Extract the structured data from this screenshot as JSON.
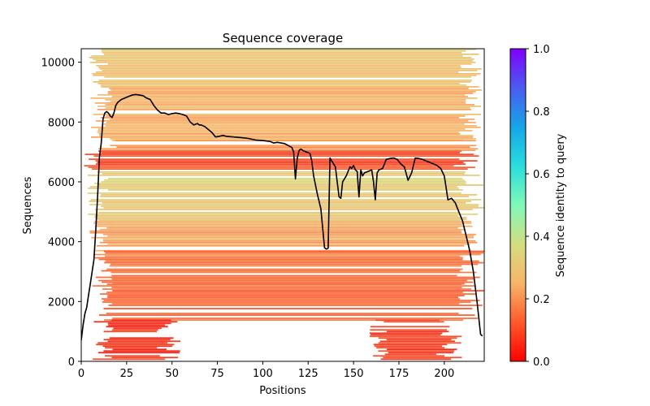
{
  "chart_data": {
    "type": "heatmap",
    "title": "Sequence coverage",
    "xlabel": "Positions",
    "ylabel": "Sequences",
    "xlim": [
      0,
      222
    ],
    "ylim": [
      0,
      10450
    ],
    "xticks": [
      0,
      25,
      50,
      75,
      100,
      125,
      150,
      175,
      200
    ],
    "yticks": [
      0,
      2000,
      4000,
      6000,
      8000,
      10000
    ],
    "xtick_labels": [
      "0",
      "25",
      "50",
      "75",
      "100",
      "125",
      "150",
      "175",
      "200"
    ],
    "ytick_labels": [
      "0",
      "2000",
      "4000",
      "6000",
      "8000",
      "10000"
    ],
    "grid": false,
    "colorbar": {
      "label": "Sequence identity to query",
      "colormap": "rainbow_r",
      "range": [
        0.0,
        1.0
      ],
      "ticks": [
        0.0,
        0.2,
        0.4,
        0.6,
        0.8,
        1.0
      ],
      "tick_labels": [
        "0.0",
        "0.2",
        "0.4",
        "0.6",
        "0.8",
        "1.0"
      ],
      "stops": [
        "#ff0000",
        "#ff5a2c",
        "#f7b56a",
        "#d4dd80",
        "#7ff9b8",
        "#2adddd",
        "#16a5e8",
        "#4a5cf0",
        "#8000ff"
      ]
    },
    "row_bands": [
      {
        "y_range": [
          9200,
          10450
        ],
        "identity": 0.3,
        "x_start": 5,
        "x_end": 222
      },
      {
        "y_range": [
          7400,
          9200
        ],
        "identity": 0.25,
        "x_start": 7,
        "x_end": 222
      },
      {
        "y_range": [
          7050,
          7400
        ],
        "identity": 0.2,
        "x_start": 10,
        "x_end": 222
      },
      {
        "y_range": [
          6400,
          7050
        ],
        "identity": 0.1,
        "x_start": 3,
        "x_end": 220
      },
      {
        "y_range": [
          4700,
          6350
        ],
        "identity": 0.32,
        "x_start": 5,
        "x_end": 222
      },
      {
        "y_range": [
          3700,
          4700
        ],
        "identity": 0.24,
        "x_start": 5,
        "x_end": 222
      },
      {
        "y_range": [
          2600,
          3700
        ],
        "identity": 0.16,
        "x_start": 8,
        "x_end": 222
      },
      {
        "y_range": [
          1400,
          2600
        ],
        "identity": 0.13,
        "x_start": 8,
        "x_end": 222
      },
      {
        "y_range": [
          0,
          1400
        ],
        "identity": 0.07,
        "x_start": 8,
        "x_end": 55
      },
      {
        "y_range": [
          0,
          1400
        ],
        "identity": 0.08,
        "x_start": 160,
        "x_end": 210
      }
    ],
    "series": [
      {
        "name": "coverage",
        "color": "#000000",
        "x": [
          0,
          1,
          2,
          3,
          4,
          5,
          6,
          7,
          8,
          9,
          10,
          11,
          12,
          13,
          14,
          15,
          16,
          17,
          18,
          19,
          20,
          22,
          24,
          26,
          28,
          30,
          32,
          34,
          36,
          38,
          40,
          42,
          44,
          46,
          48,
          50,
          52,
          54,
          56,
          58,
          60,
          62,
          64,
          65,
          66,
          68,
          70,
          72,
          74,
          76,
          78,
          80,
          84,
          88,
          92,
          96,
          100,
          104,
          106,
          108,
          112,
          116,
          117,
          118,
          119,
          120,
          121,
          122,
          124,
          126,
          127,
          128,
          130,
          132,
          134,
          135,
          136,
          137,
          138,
          140,
          141,
          142,
          143,
          144,
          146,
          148,
          149,
          150,
          151,
          152,
          153,
          154,
          155,
          156,
          158,
          160,
          161,
          162,
          163,
          164,
          166,
          168,
          170,
          172,
          174,
          176,
          178,
          180,
          182,
          184,
          186,
          188,
          190,
          192,
          194,
          196,
          198,
          200,
          201,
          202,
          204,
          206,
          208,
          210,
          212,
          214,
          216,
          218,
          220,
          221
        ],
        "y": [
          700,
          1200,
          1600,
          1800,
          2200,
          2600,
          3000,
          3400,
          4400,
          5500,
          6800,
          7300,
          8100,
          8300,
          8350,
          8300,
          8200,
          8150,
          8300,
          8550,
          8650,
          8750,
          8800,
          8850,
          8900,
          8920,
          8900,
          8880,
          8800,
          8750,
          8550,
          8400,
          8300,
          8300,
          8250,
          8280,
          8300,
          8280,
          8250,
          8200,
          8000,
          7900,
          7950,
          7900,
          7900,
          7850,
          7750,
          7650,
          7500,
          7520,
          7550,
          7520,
          7500,
          7480,
          7450,
          7400,
          7380,
          7350,
          7300,
          7320,
          7280,
          7150,
          7000,
          6100,
          6800,
          7050,
          7100,
          7050,
          7000,
          6950,
          6700,
          6200,
          5600,
          5100,
          3800,
          3750,
          3780,
          6800,
          6700,
          6500,
          6000,
          5500,
          5450,
          6000,
          6200,
          6500,
          6450,
          6550,
          6400,
          6350,
          5500,
          6400,
          6200,
          6300,
          6350,
          6400,
          6000,
          5400,
          6300,
          6400,
          6450,
          6750,
          6780,
          6800,
          6750,
          6600,
          6500,
          6050,
          6300,
          6800,
          6780,
          6750,
          6700,
          6650,
          6600,
          6550,
          6450,
          6200,
          5800,
          5400,
          5450,
          5300,
          5000,
          4700,
          4200,
          3700,
          3000,
          2000,
          900,
          850
        ]
      }
    ]
  }
}
